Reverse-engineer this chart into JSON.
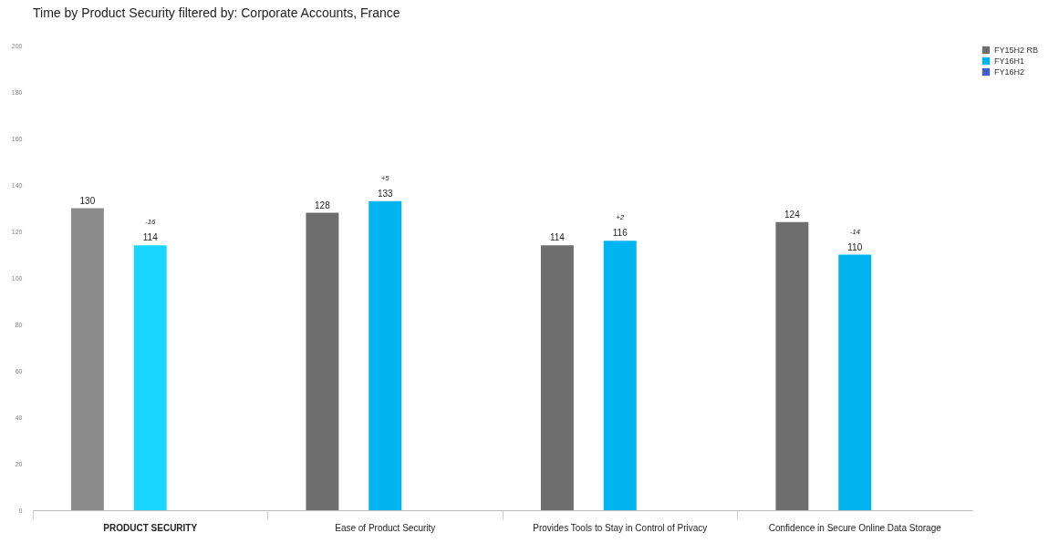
{
  "chart_data": {
    "type": "bar",
    "title": "Time by Product Security filtered by:  Corporate Accounts,  France",
    "categories": [
      "PRODUCT SECURITY",
      "Ease of Product Security",
      "Provides Tools to Stay in Control of Privacy",
      "Confidence in Secure Online Data Storage"
    ],
    "series": [
      {
        "name": "FY15H2 RB",
        "color": "#6e6e6e",
        "colors": [
          "#8c8c8c",
          "#6e6e6e",
          "#6e6e6e",
          "#6e6e6e"
        ],
        "values": [
          130,
          128,
          114,
          124
        ]
      },
      {
        "name": "FY16H1",
        "color": "#00b4f0",
        "colors": [
          "#1ad5ff",
          "#00b4f0",
          "#00b4f0",
          "#00b4f0"
        ],
        "values": [
          114,
          133,
          116,
          110
        ]
      },
      {
        "name": "FY16H2",
        "color": "#4060c8",
        "colors": [
          null,
          null,
          null,
          null
        ],
        "values": [
          null,
          null,
          null,
          null
        ]
      }
    ],
    "annotations": [
      {
        "text": "-16",
        "x": "PRODUCT SECURITY",
        "y": 114
      },
      {
        "text": "+5",
        "x": "Ease of Product Security",
        "y": 133
      },
      {
        "text": "+2",
        "x": "Provides Tools to Stay in Control of Privacy",
        "y": 116
      },
      {
        "text": "-14",
        "x": "Confidence in Secure Online Data Storage",
        "y": 110
      }
    ],
    "ylim": [
      0,
      200
    ],
    "yticks": [
      0,
      20,
      40,
      60,
      80,
      100,
      120,
      140,
      160,
      180,
      200
    ],
    "data_labels": true,
    "grid": false,
    "legend": "right"
  }
}
